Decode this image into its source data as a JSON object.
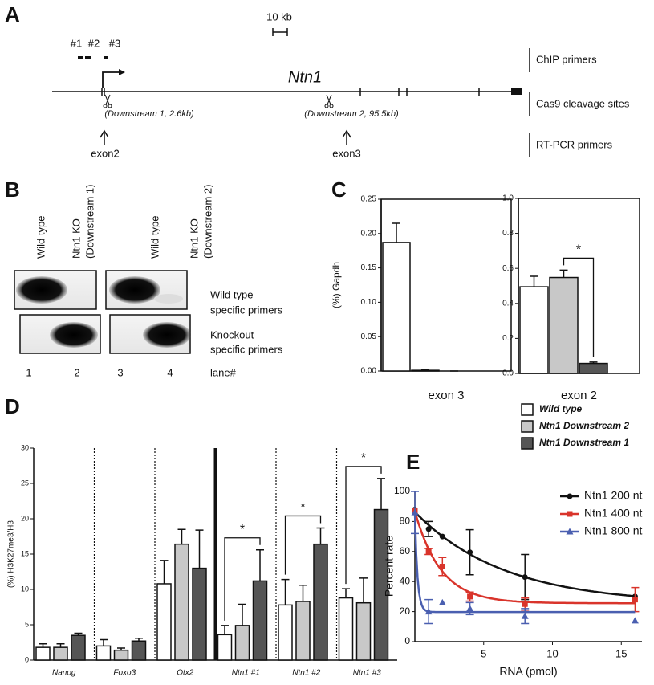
{
  "panel_labels": [
    "A",
    "B",
    "C",
    "D",
    "E"
  ],
  "gene_map": {
    "scale": "10 kb",
    "primers": [
      "#1",
      "#2",
      "#3"
    ],
    "gene": "Ntn1",
    "cleavage_sites": [
      "(Downstream 1, 2.6kb)",
      "(Downstream 2, 95.5kb)"
    ],
    "exons": [
      "exon2",
      "exon3"
    ],
    "tracks": [
      "ChIP primers",
      "Cas9 cleavage sites",
      "RT-PCR primers"
    ]
  },
  "gel": {
    "columns": [
      [
        "Wild type"
      ],
      [
        "Ntn1 KO",
        "(Downstream 1)"
      ],
      [
        "Wild type"
      ],
      [
        "Ntn1 KO",
        "(Downstream 2)"
      ]
    ],
    "rows": [
      [
        "Wild type",
        "specific primers"
      ],
      [
        "Knockout",
        "specific primers"
      ]
    ],
    "lanes": [
      "1",
      "2",
      "3",
      "4"
    ],
    "lane_title": "lane#"
  },
  "chart_data": [
    {
      "type": "bar",
      "ylabel": "(%) Gapdh",
      "categories": [
        "exon 3"
      ],
      "series": [
        {
          "name": "Wild type",
          "color": "#ffffff",
          "values": [
            0.187
          ],
          "errors": [
            0.028
          ]
        },
        {
          "name": "Ntn1 Downstream 2",
          "color": "#c8c8c8",
          "values": [
            0.001
          ],
          "errors": [
            0.0005
          ]
        },
        {
          "name": "Ntn1 Downstream 1",
          "color": "#555555",
          "values": [
            0
          ],
          "errors": [
            0
          ]
        }
      ],
      "ylim": [
        0,
        0.25
      ],
      "yticks": [
        {
          "value": 0,
          "label": "0.00"
        },
        0.05,
        {
          "value": 0.1,
          "label": "0.10"
        },
        0.15,
        {
          "value": 0.2,
          "label": "0.20"
        },
        0.25
      ]
    },
    {
      "type": "bar",
      "categories": [
        "exon 2"
      ],
      "series": [
        {
          "color": "#ffffff",
          "values": [
            0.495
          ],
          "errors": [
            0.06
          ]
        },
        {
          "color": "#c8c8c8",
          "values": [
            0.548
          ],
          "errors": [
            0.042
          ]
        },
        {
          "color": "#555555",
          "values": [
            0.057
          ],
          "errors": [
            0.008
          ]
        }
      ],
      "ylim": [
        0,
        1
      ],
      "yticks": [
        {
          "value": 0,
          "label": "0.0"
        },
        0.2,
        0.4,
        0.6,
        0.8,
        {
          "value": 1,
          "label": "1.0"
        }
      ],
      "annotations": [
        "*"
      ]
    },
    {
      "type": "bar",
      "ylabel": "(%) H3K27me3/H3",
      "categories": [
        "Nanog",
        "Foxo3",
        "Otx2",
        "Ntn1 #1",
        "Ntn1 #2",
        "Ntn1 #3"
      ],
      "series": [
        {
          "color": "#ffffff",
          "values": [
            1.8,
            2.0,
            10.8,
            3.6,
            7.8,
            8.8
          ],
          "errors": [
            0.5,
            0.9,
            3.3,
            1.3,
            3.6,
            1.3
          ]
        },
        {
          "color": "#c8c8c8",
          "values": [
            1.8,
            1.4,
            16.4,
            4.9,
            8.3,
            8.1
          ],
          "errors": [
            0.5,
            0.3,
            2.1,
            3.0,
            2.3,
            3.5
          ]
        },
        {
          "color": "#555555",
          "values": [
            3.5,
            2.7,
            13.0,
            11.2,
            16.4,
            21.3
          ],
          "errors": [
            0.3,
            0.4,
            5.4,
            4.4,
            2.3,
            4.4
          ]
        }
      ],
      "ylim": [
        0,
        30
      ],
      "yticks": [
        0,
        5,
        10,
        15,
        20,
        25,
        30
      ],
      "annotations": [
        "*",
        "*",
        "*"
      ]
    },
    {
      "type": "scatter",
      "xlabel": "RNA (pmol)",
      "ylabel": "Percent rate",
      "series": [
        {
          "name": "Ntn1 200 nt",
          "color": "#111111",
          "marker": "circle",
          "x": [
            0,
            1,
            2,
            4,
            8,
            16
          ],
          "values": [
            88,
            75,
            70,
            59.5,
            43,
            30
          ],
          "errors": [
            null,
            5,
            null,
            15,
            15,
            null
          ]
        },
        {
          "name": "Ntn1 400 nt",
          "color": "#d9342b",
          "marker": "square",
          "x": [
            0,
            1,
            2,
            4,
            8,
            16
          ],
          "values": [
            87,
            60,
            50,
            30,
            25,
            28
          ],
          "errors": [
            null,
            2,
            6,
            3,
            4,
            8
          ]
        },
        {
          "name": "Ntn1 800 nt",
          "color": "#4a5fb0",
          "marker": "triangle",
          "x": [
            0,
            1,
            2,
            4,
            8,
            16
          ],
          "values": [
            86,
            20,
            26,
            22,
            17,
            14
          ],
          "errors": [
            14,
            8,
            null,
            4,
            5,
            null
          ]
        }
      ],
      "xlim": [
        0,
        16.5
      ],
      "xticks": [
        5,
        10,
        15
      ],
      "ylim": [
        0,
        100
      ],
      "yticks": [
        0,
        20,
        40,
        60,
        80,
        100
      ],
      "legend": "upper right"
    }
  ]
}
